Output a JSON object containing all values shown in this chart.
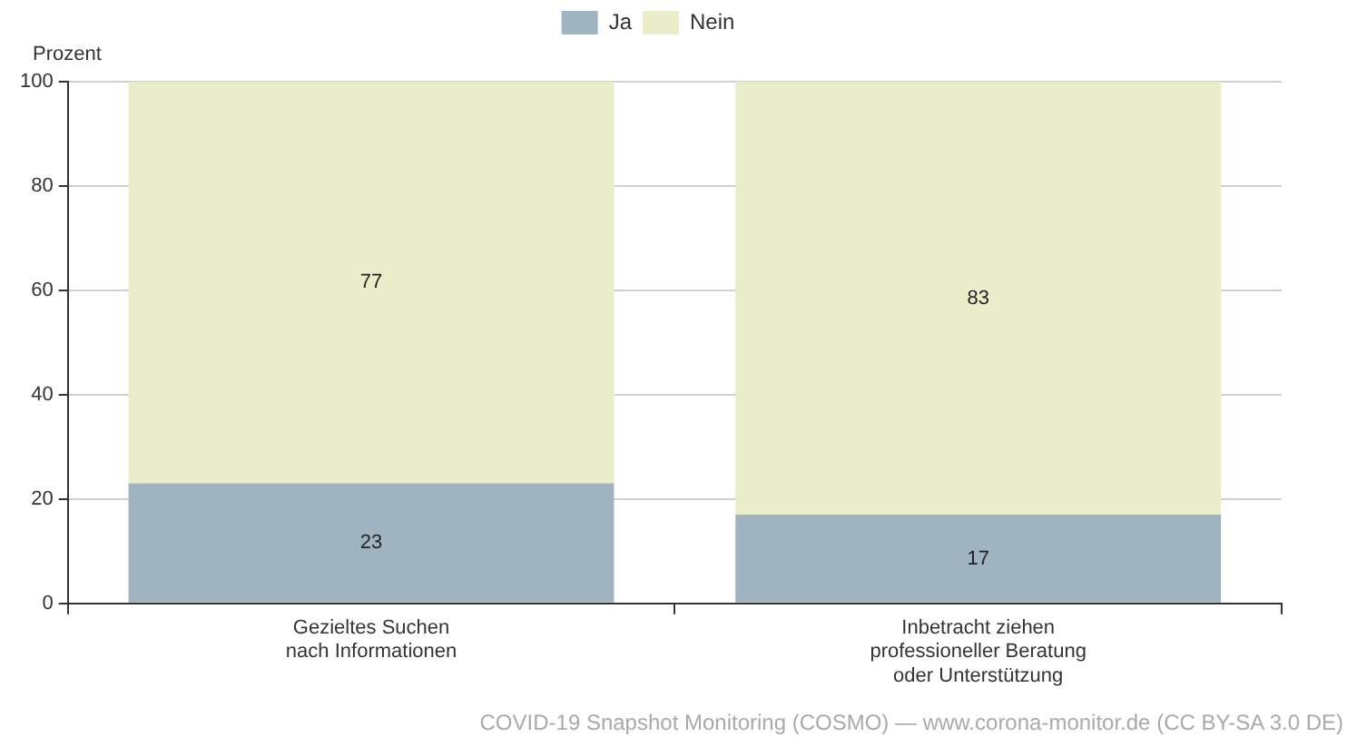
{
  "chart_data": {
    "type": "bar",
    "ylabel": "Prozent",
    "categories": [
      "Gezieltes Suchen\nnach Informationen",
      "Inbetracht ziehen\nprofessioneller Beratung\noder Unterstützung"
    ],
    "series": [
      {
        "name": "Ja",
        "color": "#9fb3c0",
        "values": [
          23,
          17
        ]
      },
      {
        "name": "Nein",
        "color": "#ebecca",
        "values": [
          77,
          83
        ]
      }
    ],
    "stacked": true,
    "ylim": [
      0,
      100
    ],
    "yticks": [
      0,
      20,
      40,
      60,
      80,
      100
    ],
    "grid": "y",
    "legend": "top",
    "data_labels": true,
    "annotations": [
      "COVID-19 Snapshot Monitoring (COSMO) — www.corona-monitor.de (CC BY-SA 3.0 DE)"
    ]
  }
}
